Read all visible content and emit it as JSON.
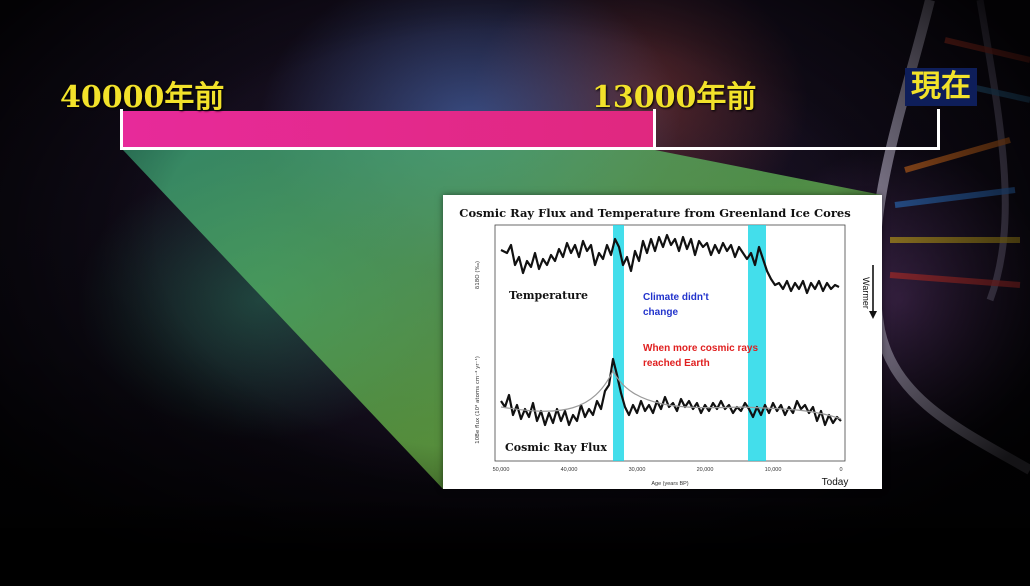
{
  "timeline": {
    "start_label": "40000年前",
    "mid_label": "13000年前",
    "end_label": "現在",
    "bar_color": "#e72a9a",
    "label_color": "#f2e22a",
    "highlighted_fraction": 0.65
  },
  "figure": {
    "title": "Cosmic Ray Flux and Temperature from Greenland Ice Cores",
    "temperature_label": "Temperature",
    "cosmic_label": "Cosmic Ray Flux",
    "annotation_blue": [
      "Climate didn't",
      "change"
    ],
    "annotation_red": [
      "When more cosmic rays",
      "reached Earth"
    ],
    "warmer_label": "Warmer",
    "today_label": "Today",
    "x_axis_label": "Age (years BP)",
    "y_label_top": "δ18O (‰)",
    "y_label_bottom": "10Be flux (10² atoms cm⁻² yr⁻¹)",
    "x_ticks": [
      "50,000",
      "40,000",
      "30,000",
      "20,000",
      "10,000",
      "0"
    ],
    "highlight_color": "#22d8e8",
    "annotation_blue_color": "#2233cc",
    "annotation_red_color": "#e02020"
  }
}
